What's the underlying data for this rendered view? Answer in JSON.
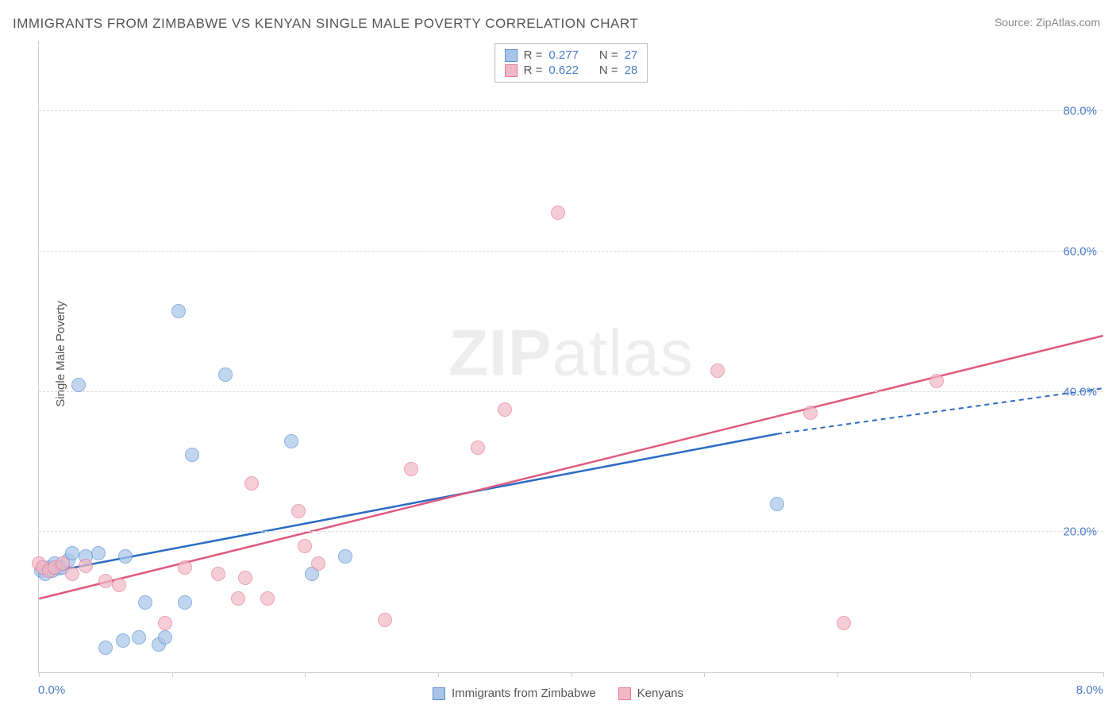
{
  "title": "IMMIGRANTS FROM ZIMBABWE VS KENYAN SINGLE MALE POVERTY CORRELATION CHART",
  "source": "Source: ZipAtlas.com",
  "ylabel": "Single Male Poverty",
  "watermark_bold": "ZIP",
  "watermark_light": "atlas",
  "chart": {
    "type": "scatter",
    "xlim": [
      0.0,
      8.0
    ],
    "ylim": [
      0.0,
      90.0
    ],
    "yticks": [
      20.0,
      40.0,
      60.0,
      80.0
    ],
    "ytick_labels": [
      "20.0%",
      "40.0%",
      "60.0%",
      "80.0%"
    ],
    "xticks": [
      0.0,
      1.0,
      2.0,
      3.0,
      4.0,
      5.0,
      6.0,
      7.0,
      8.0
    ],
    "x_axis_label_left": "0.0%",
    "x_axis_label_right": "8.0%",
    "grid_color": "#dddddd",
    "axis_color": "#cccccc",
    "tick_label_color": "#4a7bc8",
    "background_color": "#ffffff",
    "point_radius": 9,
    "point_opacity": 0.7,
    "series": [
      {
        "name": "Immigrants from Zimbabwe",
        "fill_color": "#a8c5e8",
        "stroke_color": "#5a8fd4",
        "line_color": "#2a6bc4",
        "stats": {
          "R": "0.277",
          "N": "27"
        },
        "trend": {
          "x1": 0.0,
          "y1": 14.0,
          "x2": 5.55,
          "y2": 34.0,
          "x2_ext": 8.0,
          "y2_ext": 40.5
        },
        "points": [
          [
            0.02,
            14.5
          ],
          [
            0.05,
            14.0
          ],
          [
            0.08,
            15.0
          ],
          [
            0.1,
            14.5
          ],
          [
            0.12,
            15.5
          ],
          [
            0.15,
            14.8
          ],
          [
            0.18,
            15.0
          ],
          [
            0.22,
            16.0
          ],
          [
            0.25,
            17.0
          ],
          [
            0.3,
            41.0
          ],
          [
            0.35,
            16.5
          ],
          [
            0.45,
            17.0
          ],
          [
            0.5,
            3.5
          ],
          [
            0.63,
            4.5
          ],
          [
            0.65,
            16.5
          ],
          [
            0.75,
            5.0
          ],
          [
            0.8,
            10.0
          ],
          [
            0.9,
            4.0
          ],
          [
            0.95,
            5.0
          ],
          [
            1.05,
            51.5
          ],
          [
            1.1,
            10.0
          ],
          [
            1.15,
            31.0
          ],
          [
            1.4,
            42.5
          ],
          [
            1.9,
            33.0
          ],
          [
            2.05,
            14.0
          ],
          [
            2.3,
            16.5
          ],
          [
            5.55,
            24.0
          ]
        ]
      },
      {
        "name": "Kenyans",
        "fill_color": "#f2b8c6",
        "stroke_color": "#e37a96",
        "line_color": "#e05a7e",
        "stats": {
          "R": "0.622",
          "N": "28"
        },
        "trend": {
          "x1": 0.0,
          "y1": 10.5,
          "x2": 8.0,
          "y2": 48.0
        },
        "points": [
          [
            0.0,
            15.5
          ],
          [
            0.03,
            15.0
          ],
          [
            0.08,
            14.5
          ],
          [
            0.12,
            15.0
          ],
          [
            0.18,
            15.5
          ],
          [
            0.25,
            14.0
          ],
          [
            0.35,
            15.2
          ],
          [
            0.5,
            13.0
          ],
          [
            0.6,
            12.5
          ],
          [
            0.95,
            7.0
          ],
          [
            1.1,
            15.0
          ],
          [
            1.35,
            14.0
          ],
          [
            1.5,
            10.5
          ],
          [
            1.55,
            13.5
          ],
          [
            1.6,
            27.0
          ],
          [
            1.72,
            10.5
          ],
          [
            1.95,
            23.0
          ],
          [
            2.0,
            18.0
          ],
          [
            2.1,
            15.5
          ],
          [
            2.6,
            7.5
          ],
          [
            2.8,
            29.0
          ],
          [
            3.3,
            32.0
          ],
          [
            3.5,
            37.5
          ],
          [
            3.9,
            65.5
          ],
          [
            5.1,
            43.0
          ],
          [
            5.8,
            37.0
          ],
          [
            6.05,
            7.0
          ],
          [
            6.75,
            41.5
          ]
        ]
      }
    ]
  },
  "stats_labels": {
    "R_prefix": "R =",
    "N_prefix": "N ="
  }
}
